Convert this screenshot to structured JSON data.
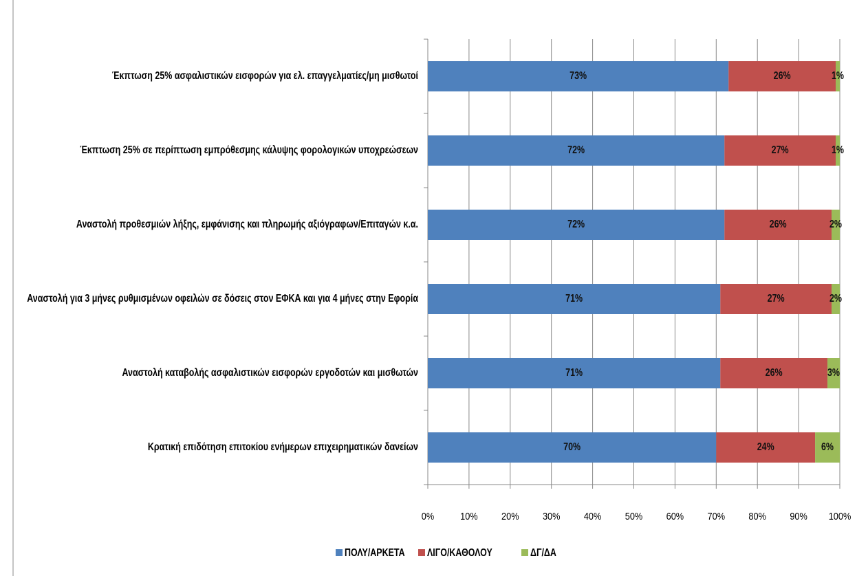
{
  "chart_data": {
    "type": "stacked_bar_horizontal",
    "categories": [
      "Έκπτωση 25% ασφαλιστικών εισφορών για ελ. επαγγελματίες/μη μισθωτοί",
      "Έκπτωση 25% σε περίπτωση εμπρόθεσμης κάλυψης φορολογικών υποχρεώσεων",
      "Αναστολή προθεσμιών λήξης, εμφάνισης και πληρωμής αξιόγραφων/Επιταγών κ.α.",
      "Αναστολή για 3 μήνες ρυθμισμένων οφειλών σε δόσεις στον ΕΦΚΑ και για 4 μήνες στην Εφορία",
      "Αναστολή καταβολής ασφαλιστικών εισφορών εργοδοτών και μισθωτών",
      "Κρατική επιδότηση επιτοκίου ενήμερων επιχειρηματικών δανείων"
    ],
    "series": [
      {
        "name": "ΠΟΛΥ/ΑΡΚΕΤΑ",
        "color": "#4f81bd",
        "values": [
          73,
          72,
          72,
          71,
          71,
          70
        ],
        "value_labels": [
          "73%",
          "72%",
          "72%",
          "71%",
          "71%",
          "70%"
        ]
      },
      {
        "name": "ΛΙΓΟ/ΚΑΘΟΛΟΥ",
        "color": "#c0504d",
        "values": [
          26,
          27,
          26,
          27,
          26,
          24
        ],
        "value_labels": [
          "26%",
          "27%",
          "26%",
          "27%",
          "26%",
          "24%"
        ]
      },
      {
        "name": "ΔΓ/ΔΑ",
        "color": "#9bbb59",
        "values": [
          1,
          1,
          2,
          2,
          3,
          6
        ],
        "value_labels": [
          "1%",
          "1%",
          "2%",
          "2%",
          "3%",
          "6%"
        ]
      }
    ],
    "xlim": [
      0,
      100
    ],
    "xticks": [
      {
        "value": 0,
        "label": "0%"
      },
      {
        "value": 10,
        "label": "10%"
      },
      {
        "value": 20,
        "label": "20%"
      },
      {
        "value": 30,
        "label": "30%"
      },
      {
        "value": 40,
        "label": "40%"
      },
      {
        "value": 50,
        "label": "50%"
      },
      {
        "value": 60,
        "label": "60%"
      },
      {
        "value": 70,
        "label": "70%"
      },
      {
        "value": 80,
        "label": "80%"
      },
      {
        "value": 90,
        "label": "90%"
      },
      {
        "value": 100,
        "label": "100%"
      }
    ],
    "grid": true,
    "legend": "bottom"
  }
}
